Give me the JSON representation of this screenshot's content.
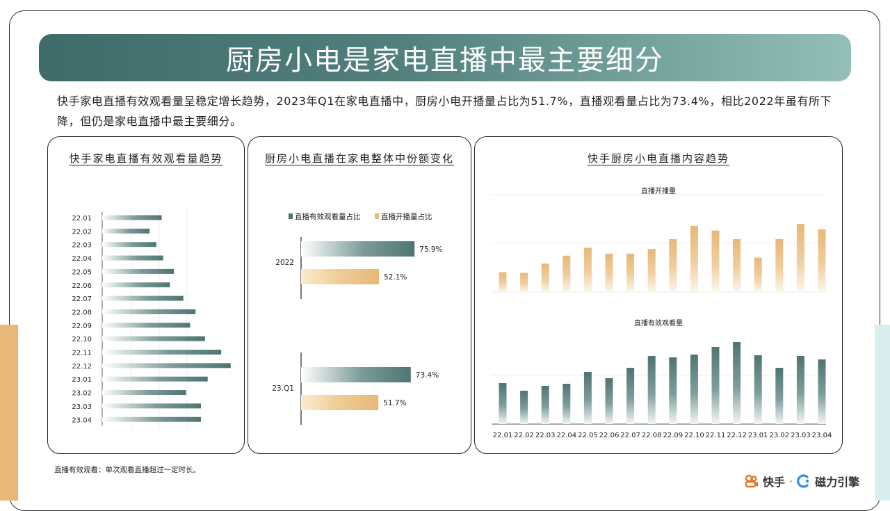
{
  "title": "厨房小电是家电直播中最主要细分",
  "summary": "快手家电直播有效观看量呈稳定增长趋势，2023年Q1在家电直播中，厨房小电开播量占比为51.7%，直播观看量占比为73.4%，相比2022年虽有所下降，但仍是家电直播中最主要细分。",
  "footnote": "直播有效观看：单次观看直播超过一定时长。",
  "brand": {
    "kuaishou": "快手",
    "separator": "·",
    "cili": "磁力引擎"
  },
  "colors": {
    "teal": "#4e7572",
    "orange": "#e7b877",
    "title_bar": "#4a7472"
  },
  "chart_data": [
    {
      "type": "bar",
      "orientation": "horizontal",
      "title": "快手家电直播有效观看量趋势",
      "categories": [
        "22.01",
        "22.02",
        "22.03",
        "22.04",
        "22.05",
        "22.06",
        "22.07",
        "22.08",
        "22.09",
        "22.10",
        "22.11",
        "22.12",
        "23.01",
        "23.02",
        "23.03",
        "23.04"
      ],
      "values": [
        44,
        35,
        40,
        45,
        53,
        50,
        60,
        69,
        65,
        76,
        88,
        95,
        78,
        62,
        73,
        73
      ],
      "grid": true
    },
    {
      "type": "bar",
      "orientation": "horizontal",
      "title": "厨房小电直播在家电整体中份额变化",
      "categories": [
        "2022",
        "23.Q1"
      ],
      "series": [
        {
          "name": "直播有效观看量占比",
          "values": [
            75.9,
            73.4
          ],
          "labels": [
            "75.9%",
            "73.4%"
          ],
          "color": "#4e7572"
        },
        {
          "name": "直播开播量占比",
          "values": [
            52.1,
            51.7
          ],
          "labels": [
            "52.1%",
            "51.7%"
          ],
          "color": "#e7b877"
        }
      ],
      "legend": "top"
    },
    {
      "type": "bar",
      "title": "快手厨房小电直播内容趋势",
      "categories": [
        "22.01",
        "22.02",
        "22.03",
        "22.04",
        "22.05",
        "22.06",
        "22.07",
        "22.08",
        "22.09",
        "22.10",
        "22.11",
        "22.12",
        "23.01",
        "23.02",
        "23.03",
        "23.04"
      ],
      "series": [
        {
          "name": "直播开播量",
          "values": [
            30,
            29,
            43,
            55,
            67,
            58,
            58,
            65,
            80,
            100,
            93,
            80,
            52,
            80,
            103,
            95
          ],
          "color": "#e7b877"
        },
        {
          "name": "直播有效观看量",
          "values": [
            59,
            48,
            55,
            58,
            75,
            66,
            81,
            98,
            96,
            100,
            111,
            118,
            99,
            81,
            98,
            93
          ],
          "color": "#4e7572"
        }
      ],
      "grid": true
    }
  ]
}
